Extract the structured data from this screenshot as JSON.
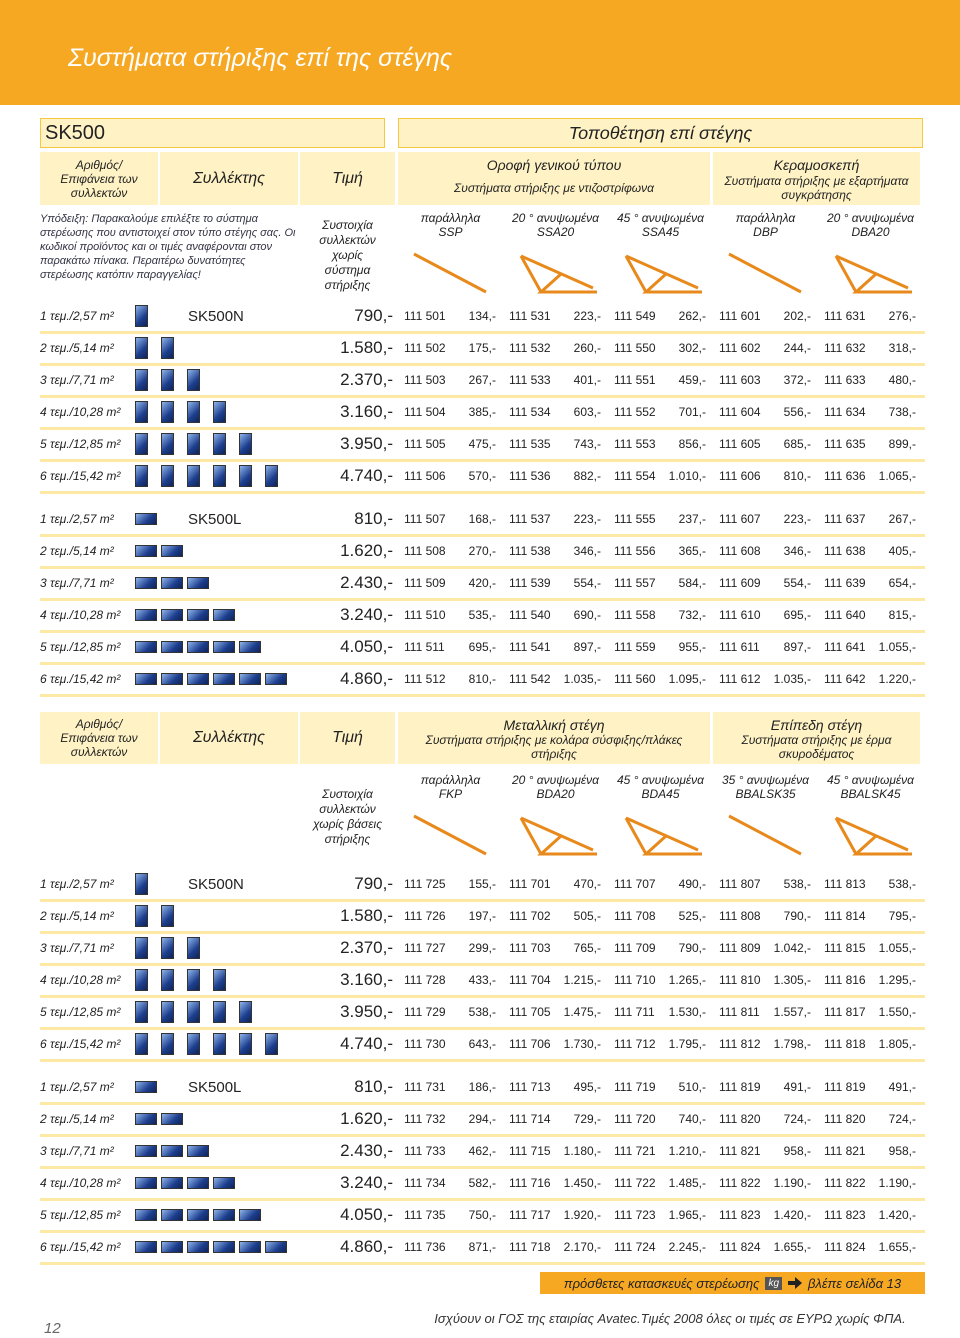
{
  "title": "Συστήματα στήριξης επί της στέγης",
  "sections": [
    {
      "product": "SK500",
      "mounting": "Τοποθέτηση επί στέγης",
      "header": {
        "count": "Αριθμός/ Επιφάνεια των συλλεκτών",
        "collector": "Συλλέκτης",
        "price": "Τιμή",
        "roof_types": [
          {
            "title": "Οροφή γενικού τύπου",
            "subtitle": "Συστήματα στήριξης με ντιζοστρίφωνα"
          },
          {
            "title": "Κεραμοσκεπή",
            "subtitle": "Συστήματα στήριξης με εξαρτήματα συγκράτησης"
          }
        ]
      },
      "note": "Υπόδειξη: Παρακαλούμε επιλέξτε το σύστημα στερέωσης που αντιστοιχεί στον τύπο στέγης σας. Οι κωδικοί προϊόντος και οι τιμές αναφέρονται στον παρακάτω πίνακα. Περαιτέρω δυνατότητες στερέωσης κατόπιν παραγγελίας!",
      "set_label": "Συστοιχία συλλεκτών χωρίς σύστημα στήριξης",
      "systems": [
        {
          "angle": "παράλληλα",
          "code": "SSP"
        },
        {
          "angle": "20 ° ανυψωμένα",
          "code": "SSA20"
        },
        {
          "angle": "45 ° ανυψωμένα",
          "code": "SSA45"
        },
        {
          "angle": "παράλληλα",
          "code": "DBP"
        },
        {
          "angle": "20 ° ανυψωμένα",
          "code": "DBA20"
        }
      ],
      "groups": [
        {
          "collector": "SK500N",
          "rows": [
            {
              "area": "1 τεμ./2,57 m²",
              "price": "790,-",
              "cells": [
                [
                  "111 501",
                  "134,-"
                ],
                [
                  "111 531",
                  "223,-"
                ],
                [
                  "111 549",
                  "262,-"
                ],
                [
                  "111 601",
                  "202,-"
                ],
                [
                  "111 631",
                  "276,-"
                ]
              ]
            },
            {
              "area": "2 τεμ./5,14 m²",
              "price": "1.580,-",
              "cells": [
                [
                  "111 502",
                  "175,-"
                ],
                [
                  "111 532",
                  "260,-"
                ],
                [
                  "111 550",
                  "302,-"
                ],
                [
                  "111 602",
                  "244,-"
                ],
                [
                  "111 632",
                  "318,-"
                ]
              ]
            },
            {
              "area": "3 τεμ./7,71 m²",
              "price": "2.370,-",
              "cells": [
                [
                  "111 503",
                  "267,-"
                ],
                [
                  "111 533",
                  "401,-"
                ],
                [
                  "111 551",
                  "459,-"
                ],
                [
                  "111 603",
                  "372,-"
                ],
                [
                  "111 633",
                  "480,-"
                ]
              ]
            },
            {
              "area": "4 τεμ./10,28 m²",
              "price": "3.160,-",
              "cells": [
                [
                  "111 504",
                  "385,-"
                ],
                [
                  "111 534",
                  "603,-"
                ],
                [
                  "111 552",
                  "701,-"
                ],
                [
                  "111 604",
                  "556,-"
                ],
                [
                  "111 634",
                  "738,-"
                ]
              ]
            },
            {
              "area": "5 τεμ./12,85 m²",
              "price": "3.950,-",
              "cells": [
                [
                  "111 505",
                  "475,-"
                ],
                [
                  "111 535",
                  "743,-"
                ],
                [
                  "111 553",
                  "856,-"
                ],
                [
                  "111 605",
                  "685,-"
                ],
                [
                  "111 635",
                  "899,-"
                ]
              ]
            },
            {
              "area": "6 τεμ./15,42 m²",
              "price": "4.740,-",
              "cells": [
                [
                  "111 506",
                  "570,-"
                ],
                [
                  "111 536",
                  "882,-"
                ],
                [
                  "111 554",
                  "1.010,-"
                ],
                [
                  "111 606",
                  "810,-"
                ],
                [
                  "111 636",
                  "1.065,-"
                ]
              ]
            }
          ]
        },
        {
          "collector": "SK500L",
          "rows": [
            {
              "area": "1 τεμ./2,57 m²",
              "price": "810,-",
              "cells": [
                [
                  "111 507",
                  "168,-"
                ],
                [
                  "111 537",
                  "223,-"
                ],
                [
                  "111 555",
                  "237,-"
                ],
                [
                  "111 607",
                  "223,-"
                ],
                [
                  "111 637",
                  "267,-"
                ]
              ]
            },
            {
              "area": "2 τεμ./5,14 m²",
              "price": "1.620,-",
              "cells": [
                [
                  "111 508",
                  "270,-"
                ],
                [
                  "111 538",
                  "346,-"
                ],
                [
                  "111 556",
                  "365,-"
                ],
                [
                  "111 608",
                  "346,-"
                ],
                [
                  "111 638",
                  "405,-"
                ]
              ]
            },
            {
              "area": "3 τεμ./7,71 m²",
              "price": "2.430,-",
              "cells": [
                [
                  "111 509",
                  "420,-"
                ],
                [
                  "111 539",
                  "554,-"
                ],
                [
                  "111 557",
                  "584,-"
                ],
                [
                  "111 609",
                  "554,-"
                ],
                [
                  "111 639",
                  "654,-"
                ]
              ]
            },
            {
              "area": "4 τεμ./10,28 m²",
              "price": "3.240,-",
              "cells": [
                [
                  "111 510",
                  "535,-"
                ],
                [
                  "111 540",
                  "690,-"
                ],
                [
                  "111 558",
                  "732,-"
                ],
                [
                  "111 610",
                  "695,-"
                ],
                [
                  "111 640",
                  "815,-"
                ]
              ]
            },
            {
              "area": "5 τεμ./12,85 m²",
              "price": "4.050,-",
              "cells": [
                [
                  "111 511",
                  "695,-"
                ],
                [
                  "111 541",
                  "897,-"
                ],
                [
                  "111 559",
                  "955,-"
                ],
                [
                  "111 611",
                  "897,-"
                ],
                [
                  "111 641",
                  "1.055,-"
                ]
              ]
            },
            {
              "area": "6 τεμ./15,42 m²",
              "price": "4.860,-",
              "cells": [
                [
                  "111 512",
                  "810,-"
                ],
                [
                  "111 542",
                  "1.035,-"
                ],
                [
                  "111 560",
                  "1.095,-"
                ],
                [
                  "111 612",
                  "1.035,-"
                ],
                [
                  "111 642",
                  "1.220,-"
                ]
              ]
            }
          ]
        }
      ]
    },
    {
      "header": {
        "count": "Αριθμός/ Επιφάνεια των συλλεκτών",
        "collector": "Συλλέκτης",
        "price": "Τιμή",
        "roof_types": [
          {
            "title": "Μεταλλική στέγη",
            "subtitle": "Συστήματα στήριξης με κολάρα σύσφιξης/πλάκες στήριξης"
          },
          {
            "title": "Επίπεδη στέγη",
            "subtitle": "Συστήματα στήριξης με έρμα σκυροδέματος"
          }
        ]
      },
      "set_label": "Συστοιχία συλλεκτών χωρίς βάσεις στήριξης",
      "systems": [
        {
          "angle": "παράλληλα",
          "code": "FKP"
        },
        {
          "angle": "20 ° ανυψωμένα",
          "code": "BDA20"
        },
        {
          "angle": "45 ° ανυψωμένα",
          "code": "BDA45"
        },
        {
          "angle": "35 ° ανυψωμένα",
          "code": "BBALSK35"
        },
        {
          "angle": "45 ° ανυψωμένα",
          "code": "BBALSK45"
        }
      ],
      "groups": [
        {
          "collector": "SK500N",
          "rows": [
            {
              "area": "1 τεμ./2,57 m²",
              "price": "790,-",
              "cells": [
                [
                  "111 725",
                  "155,-"
                ],
                [
                  "111 701",
                  "470,-"
                ],
                [
                  "111 707",
                  "490,-"
                ],
                [
                  "111 807",
                  "538,-"
                ],
                [
                  "111 813",
                  "538,-"
                ]
              ]
            },
            {
              "area": "2 τεμ./5,14 m²",
              "price": "1.580,-",
              "cells": [
                [
                  "111 726",
                  "197,-"
                ],
                [
                  "111 702",
                  "505,-"
                ],
                [
                  "111 708",
                  "525,-"
                ],
                [
                  "111 808",
                  "790,-"
                ],
                [
                  "111 814",
                  "795,-"
                ]
              ]
            },
            {
              "area": "3 τεμ./7,71 m²",
              "price": "2.370,-",
              "cells": [
                [
                  "111 727",
                  "299,-"
                ],
                [
                  "111 703",
                  "765,-"
                ],
                [
                  "111 709",
                  "790,-"
                ],
                [
                  "111 809",
                  "1.042,-"
                ],
                [
                  "111 815",
                  "1.055,-"
                ]
              ]
            },
            {
              "area": "4 τεμ./10,28 m²",
              "price": "3.160,-",
              "cells": [
                [
                  "111 728",
                  "433,-"
                ],
                [
                  "111 704",
                  "1.215,-"
                ],
                [
                  "111 710",
                  "1.265,-"
                ],
                [
                  "111 810",
                  "1.305,-"
                ],
                [
                  "111 816",
                  "1.295,-"
                ]
              ]
            },
            {
              "area": "5 τεμ./12,85 m²",
              "price": "3.950,-",
              "cells": [
                [
                  "111 729",
                  "538,-"
                ],
                [
                  "111 705",
                  "1.475,-"
                ],
                [
                  "111 711",
                  "1.530,-"
                ],
                [
                  "111 811",
                  "1.557,-"
                ],
                [
                  "111 817",
                  "1.550,-"
                ]
              ]
            },
            {
              "area": "6 τεμ./15,42 m²",
              "price": "4.740,-",
              "cells": [
                [
                  "111 730",
                  "643,-"
                ],
                [
                  "111 706",
                  "1.730,-"
                ],
                [
                  "111 712",
                  "1.795,-"
                ],
                [
                  "111 812",
                  "1.798,-"
                ],
                [
                  "111 818",
                  "1.805,-"
                ]
              ]
            }
          ]
        },
        {
          "collector": "SK500L",
          "rows": [
            {
              "area": "1 τεμ./2,57 m²",
              "price": "810,-",
              "cells": [
                [
                  "111 731",
                  "186,-"
                ],
                [
                  "111 713",
                  "495,-"
                ],
                [
                  "111 719",
                  "510,-"
                ],
                [
                  "111 819",
                  "491,-"
                ],
                [
                  "111 819",
                  "491,-"
                ]
              ]
            },
            {
              "area": "2 τεμ./5,14 m²",
              "price": "1.620,-",
              "cells": [
                [
                  "111 732",
                  "294,-"
                ],
                [
                  "111 714",
                  "729,-"
                ],
                [
                  "111 720",
                  "740,-"
                ],
                [
                  "111 820",
                  "724,-"
                ],
                [
                  "111 820",
                  "724,-"
                ]
              ]
            },
            {
              "area": "3 τεμ./7,71 m²",
              "price": "2.430,-",
              "cells": [
                [
                  "111 733",
                  "462,-"
                ],
                [
                  "111 715",
                  "1.180,-"
                ],
                [
                  "111 721",
                  "1.210,-"
                ],
                [
                  "111 821",
                  "958,-"
                ],
                [
                  "111 821",
                  "958,-"
                ]
              ]
            },
            {
              "area": "4 τεμ./10,28 m²",
              "price": "3.240,-",
              "cells": [
                [
                  "111 734",
                  "582,-"
                ],
                [
                  "111 716",
                  "1.450,-"
                ],
                [
                  "111 722",
                  "1.485,-"
                ],
                [
                  "111 822",
                  "1.190,-"
                ],
                [
                  "111 822",
                  "1.190,-"
                ]
              ]
            },
            {
              "area": "5 τεμ./12,85 m²",
              "price": "4.050,-",
              "cells": [
                [
                  "111 735",
                  "750,-"
                ],
                [
                  "111 717",
                  "1.920,-"
                ],
                [
                  "111 723",
                  "1.965,-"
                ],
                [
                  "111 823",
                  "1.420,-"
                ],
                [
                  "111 823",
                  "1.420,-"
                ]
              ]
            },
            {
              "area": "6 τεμ./15,42 m²",
              "price": "4.860,-",
              "cells": [
                [
                  "111 736",
                  "871,-"
                ],
                [
                  "111 718",
                  "2.170,-"
                ],
                [
                  "111 724",
                  "2.245,-"
                ],
                [
                  "111 824",
                  "1.655,-"
                ],
                [
                  "111 824",
                  "1.655,-"
                ]
              ]
            }
          ]
        }
      ]
    }
  ],
  "footer": {
    "extra": "πρόσθετες κατασκευές στερέωσης",
    "icon": "kg",
    "see": "βλέπε σελίδα 13",
    "page": "12",
    "terms": "Ισχύουν οι ΓΟΣ της εταιρίας Avatec.Τιμές 2008 όλες οι τιμές σε ΕΥΡΩ χωρίς ΦΠΑ."
  }
}
